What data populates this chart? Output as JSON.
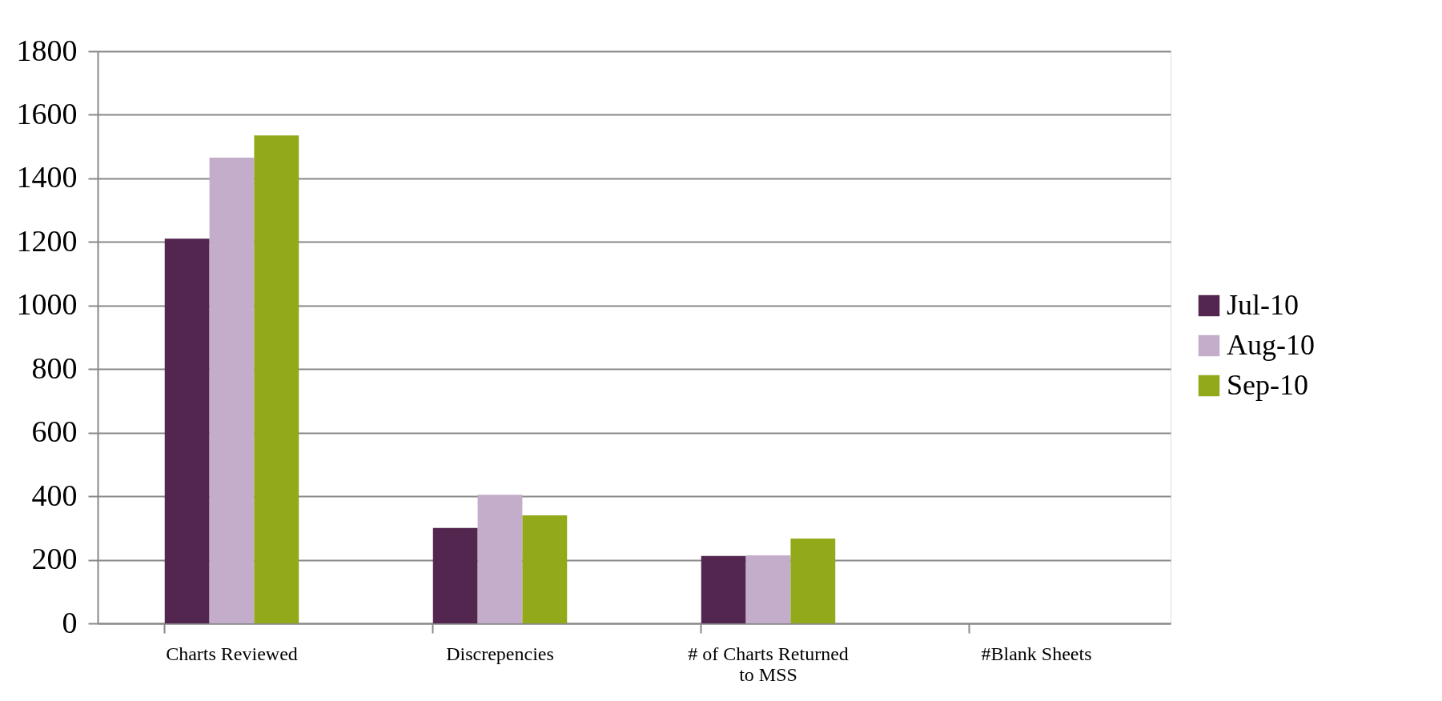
{
  "chart_data": {
    "type": "bar",
    "categories": [
      "Charts Reviewed",
      "Discrepencies",
      "# of Charts Returned\nto MSS",
      "#Blank  Sheets"
    ],
    "series": [
      {
        "name": "Jul-10",
        "color": "#52264f",
        "values": [
          1210,
          300,
          212,
          null
        ]
      },
      {
        "name": "Aug-10",
        "color": "#c3adcb",
        "values": [
          1465,
          405,
          214,
          null
        ]
      },
      {
        "name": "Sep-10",
        "color": "#92aa1a",
        "values": [
          1535,
          340,
          267,
          null
        ]
      }
    ],
    "ylim": [
      0,
      1800
    ],
    "yticks": [
      0,
      200,
      400,
      600,
      800,
      1000,
      1200,
      1400,
      1600,
      1800
    ],
    "grid": "y",
    "legend": "right"
  }
}
